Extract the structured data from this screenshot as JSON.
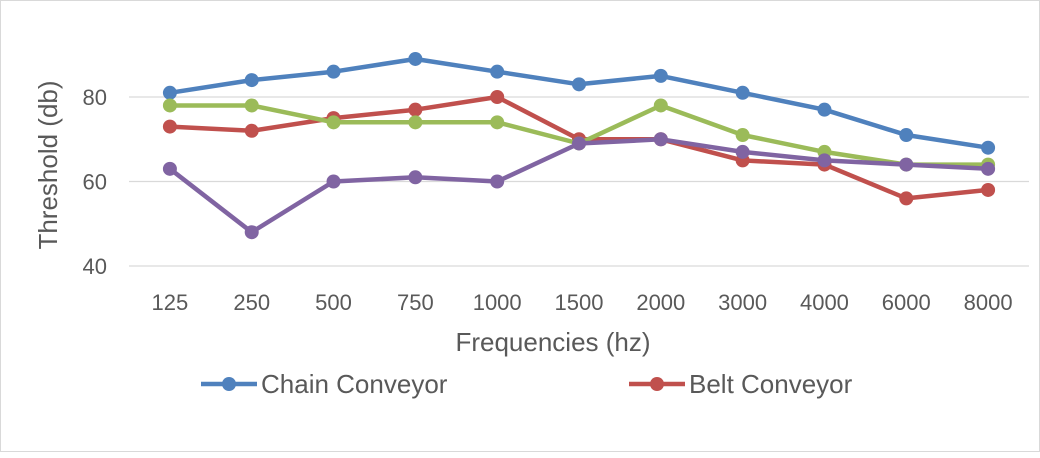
{
  "chart_data": {
    "type": "line",
    "title": "",
    "xlabel": "Frequencies (hz)",
    "ylabel": "Threshold (db)",
    "ylim": [
      40,
      90
    ],
    "yticks": [
      40,
      60,
      80
    ],
    "grid": true,
    "legend_position": "bottom",
    "categories": [
      "125",
      "250",
      "500",
      "750",
      "1000",
      "1500",
      "2000",
      "3000",
      "4000",
      "6000",
      "8000"
    ],
    "series": [
      {
        "name": "Chain Conveyor",
        "color": "#4f81bd",
        "values": [
          81,
          84,
          86,
          89,
          86,
          83,
          85,
          81,
          77,
          71,
          68
        ]
      },
      {
        "name": "Belt Conveyor",
        "color": "#c0504d",
        "values": [
          73,
          72,
          75,
          77,
          80,
          70,
          70,
          65,
          64,
          56,
          58
        ]
      },
      {
        "name": "",
        "color": "#9bbb59",
        "values": [
          78,
          78,
          74,
          74,
          74,
          69,
          78,
          71,
          67,
          64,
          64
        ]
      },
      {
        "name": "",
        "color": "#8064a2",
        "values": [
          63,
          48,
          60,
          61,
          60,
          69,
          70,
          67,
          65,
          64,
          63
        ]
      }
    ]
  }
}
